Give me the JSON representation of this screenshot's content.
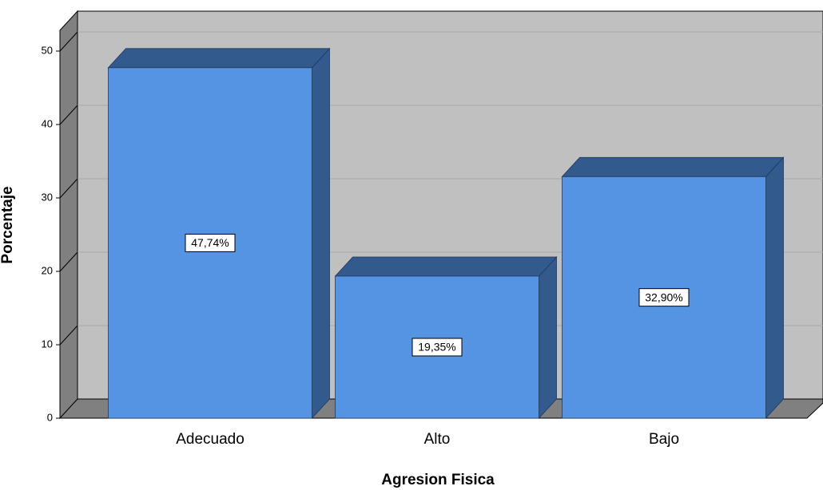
{
  "chart_data": {
    "type": "bar3d",
    "x_label": "Agresion Fisica",
    "y_label": "Porcentaje",
    "categories": [
      "Adecuado",
      "Alto",
      "Bajo"
    ],
    "values": [
      47.74,
      19.35,
      32.9
    ],
    "value_labels": [
      "47,74%",
      "19,35%",
      "32,90%"
    ],
    "color": "#5594e3",
    "ylim": [
      0,
      53
    ],
    "yticks": [
      0,
      10,
      20,
      30,
      40,
      50
    ],
    "grid": true
  }
}
